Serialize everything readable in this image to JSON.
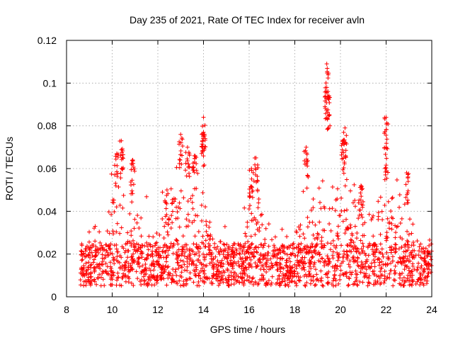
{
  "chart_data": {
    "type": "scatter",
    "title": "Day 235 of 2021, Rate Of TEC Index for receiver avln",
    "xlabel": "GPS time / hours",
    "ylabel": "ROTI / TECUs",
    "xlim": [
      8,
      24
    ],
    "ylim": [
      0,
      0.12
    ],
    "xticks": [
      8,
      10,
      12,
      14,
      16,
      18,
      20,
      22,
      24
    ],
    "xtick_labels": [
      "8",
      "10",
      "12",
      "14",
      "16",
      "18",
      "20",
      "22",
      "24"
    ],
    "yticks": [
      0,
      0.02,
      0.04,
      0.06,
      0.08,
      0.1,
      0.12
    ],
    "ytick_labels": [
      "0",
      "0.02",
      "0.04",
      "0.06",
      "0.08",
      "0.1",
      "0.12"
    ],
    "grid": true,
    "marker": "+",
    "color": "#ff0000",
    "series": [
      {
        "name": "ROTI",
        "x_range": [
          8.6,
          24.0
        ],
        "baseline_band": [
          0.005,
          0.025
        ],
        "notable_peaks": [
          {
            "x": 10.2,
            "y": 0.067
          },
          {
            "x": 10.4,
            "y": 0.073
          },
          {
            "x": 10.9,
            "y": 0.064
          },
          {
            "x": 12.4,
            "y": 0.05
          },
          {
            "x": 13.0,
            "y": 0.076
          },
          {
            "x": 13.3,
            "y": 0.07
          },
          {
            "x": 13.6,
            "y": 0.066
          },
          {
            "x": 14.0,
            "y": 0.084
          },
          {
            "x": 14.0,
            "y": 0.077
          },
          {
            "x": 16.3,
            "y": 0.065
          },
          {
            "x": 16.1,
            "y": 0.06
          },
          {
            "x": 18.5,
            "y": 0.07
          },
          {
            "x": 19.4,
            "y": 0.109
          },
          {
            "x": 19.4,
            "y": 0.098
          },
          {
            "x": 19.5,
            "y": 0.094
          },
          {
            "x": 20.2,
            "y": 0.079
          },
          {
            "x": 20.1,
            "y": 0.073
          },
          {
            "x": 20.9,
            "y": 0.052
          },
          {
            "x": 22.0,
            "y": 0.084
          },
          {
            "x": 22.0,
            "y": 0.07
          },
          {
            "x": 22.9,
            "y": 0.058
          }
        ]
      }
    ]
  }
}
